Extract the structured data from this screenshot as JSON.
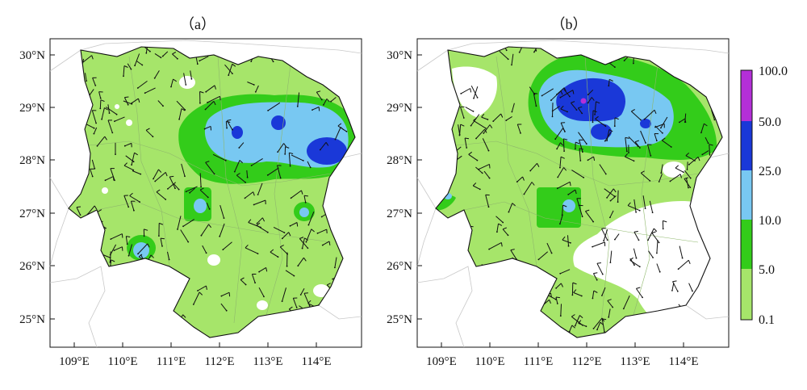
{
  "panels": [
    {
      "id": "a",
      "title": "（a）"
    },
    {
      "id": "b",
      "title": "（b）"
    }
  ],
  "axes": {
    "lat_labels": [
      "30°N",
      "29°N",
      "28°N",
      "27°N",
      "26°N",
      "25°N"
    ],
    "lon_labels": [
      "109°E",
      "110°E",
      "111°E",
      "112°E",
      "113°E",
      "114°E"
    ]
  },
  "colorbar": {
    "labels": [
      "100.0",
      "50.0",
      "25.0",
      "10.0",
      "5.0",
      "0.1"
    ],
    "colors": [
      "#b42fd8",
      "#1a38d8",
      "#78c8f2",
      "#33cc1a",
      "#a6e56a"
    ]
  },
  "colors": {
    "light_green": "#a6e56a",
    "green": "#33cc1a",
    "light_blue": "#78c8f2",
    "blue": "#1a38d8",
    "purple": "#b42fd8"
  }
}
